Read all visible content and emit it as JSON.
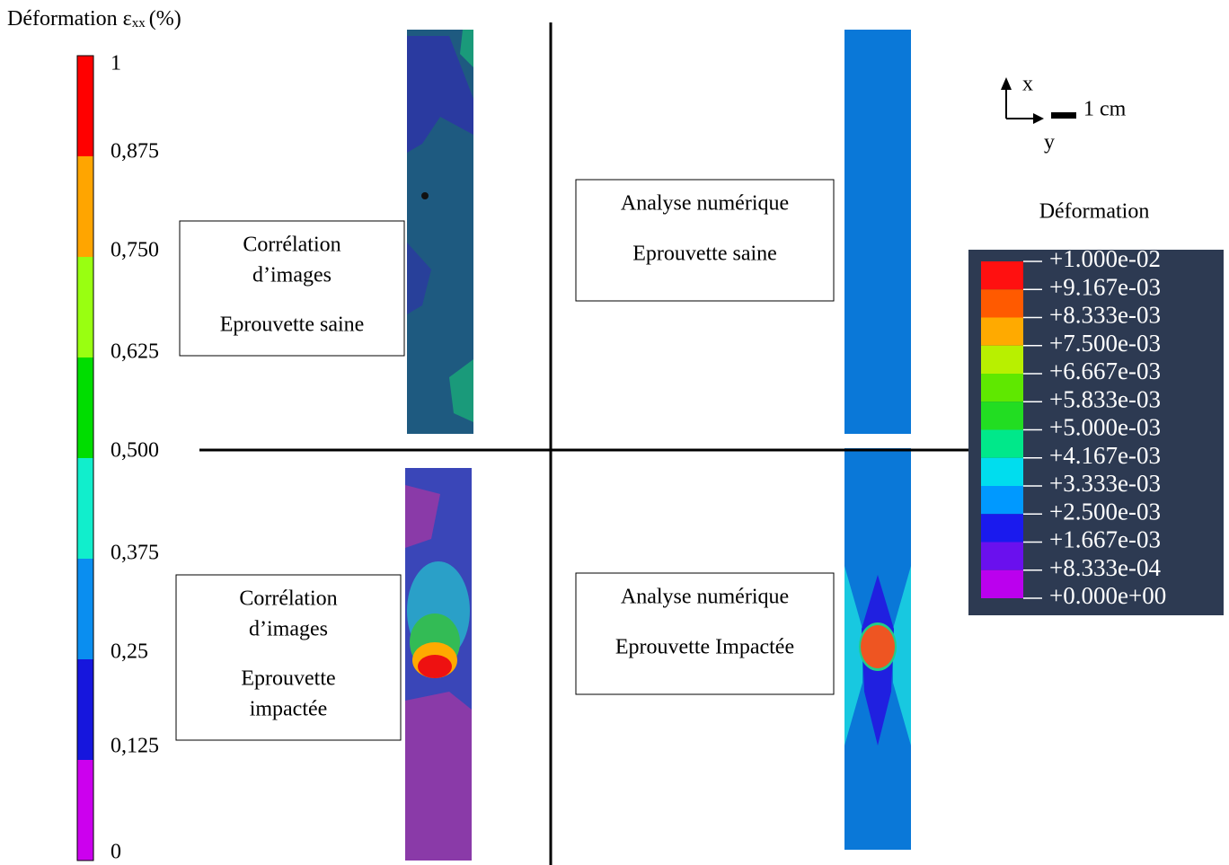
{
  "left_scale": {
    "title": "Déformation ε",
    "title_subscript": "xx",
    "title_unit": "(%)",
    "labels": [
      "1",
      "0,875",
      "0,750",
      "0,625",
      "0,500",
      "0,375",
      "0,25",
      "0,125",
      "0"
    ],
    "colors": [
      "#ff0000",
      "#ffa500",
      "#99ff11",
      "#00dd00",
      "#11eecc",
      "#0a8ef0",
      "#1616dd",
      "#cc00ee"
    ]
  },
  "boxes": [
    {
      "lines": [
        "Corrélation",
        "d’images",
        "Eprouvette saine"
      ]
    },
    {
      "lines": [
        "Corrélation",
        "d’images",
        "Eprouvette",
        "impactée"
      ]
    },
    {
      "lines": [
        "Analyse numérique",
        "Eprouvette saine"
      ]
    },
    {
      "lines": [
        "Analyse numérique",
        "Eprouvette Impactée"
      ]
    }
  ],
  "axes_indicator": {
    "x": "x",
    "y": "y",
    "scale": "1 cm"
  },
  "right_legend": {
    "title": "Déformation",
    "labels": [
      "+1.000e-02",
      "+9.167e-03",
      "+8.333e-03",
      "+7.500e-03",
      "+6.667e-03",
      "+5.833e-03",
      "+5.000e-03",
      "+4.167e-03",
      "+3.333e-03",
      "+2.500e-03",
      "+1.667e-03",
      "+8.333e-04",
      "+0.000e+00"
    ],
    "colors": [
      "#ff1010",
      "#ff5a00",
      "#ffaa00",
      "#b8f000",
      "#5fe800",
      "#22dd22",
      "#00e88a",
      "#00ddee",
      "#0099ff",
      "#1a1aee",
      "#6a10ee",
      "#bb00ee"
    ]
  }
}
